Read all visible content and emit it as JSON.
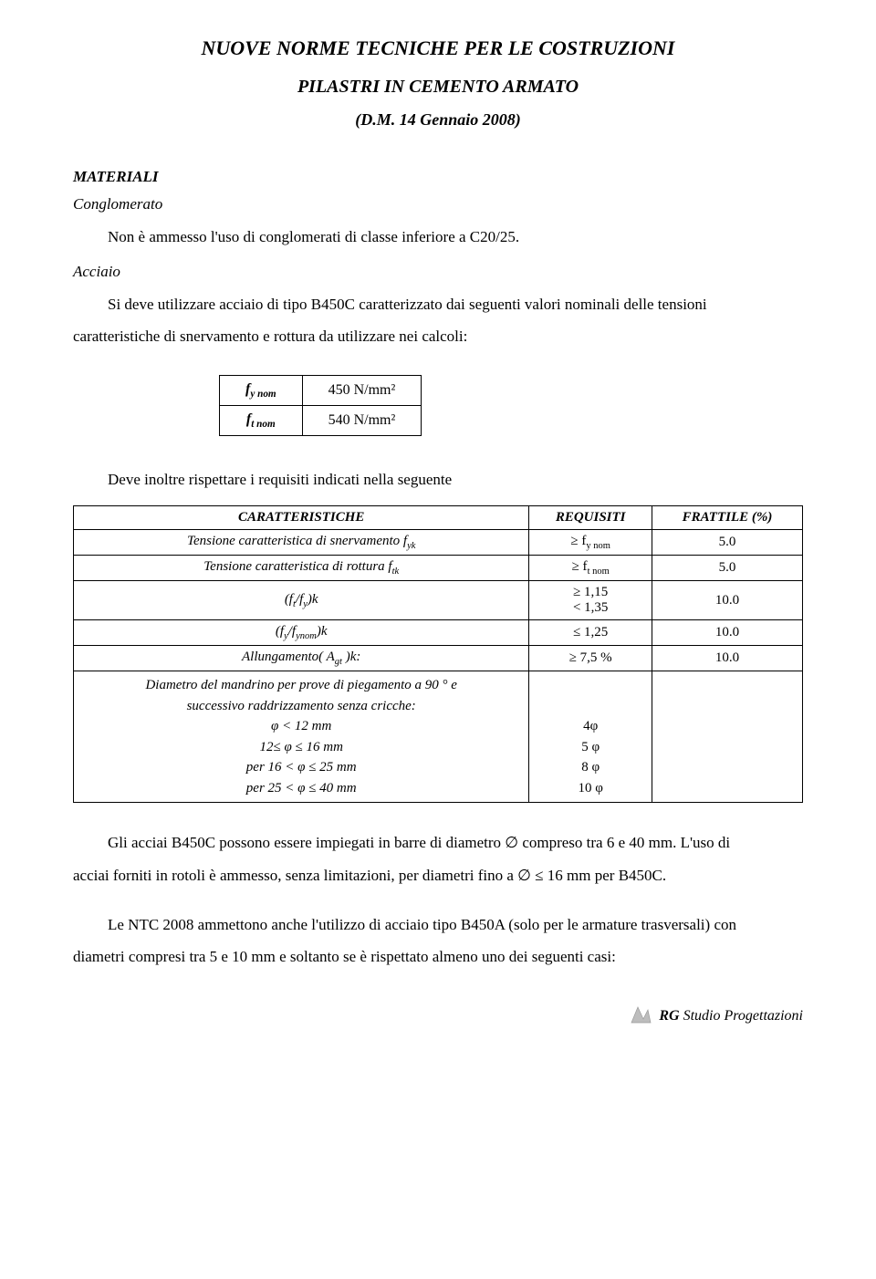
{
  "title": {
    "main": "NUOVE NORME TECNICHE PER LE COSTRUZIONI",
    "sub": "PILASTRI IN CEMENTO ARMATO",
    "date": "(D.M. 14 Gennaio 2008)"
  },
  "sections": {
    "materiali_heading": "MATERIALI",
    "conglomerato": {
      "heading": "Conglomerato",
      "text": "Non è ammesso l'uso di conglomerati di classe inferiore a C20/25."
    },
    "acciaio": {
      "heading": "Acciaio",
      "intro_prefix": "Si deve utilizzare acciaio di tipo B450C caratterizzato dai seguenti valori nominali delle tensioni",
      "intro_suffix": "caratteristiche di snervamento e rottura da utilizzare nei calcoli:"
    },
    "small_table": {
      "rows": [
        {
          "label_html": "f<sub>y nom</sub>",
          "value": "450 N/mm²"
        },
        {
          "label_html": "f<sub>t nom</sub>",
          "value": "540 N/mm²"
        }
      ]
    },
    "requisiti_text": "Deve inoltre rispettare i requisiti indicati nella seguente",
    "main_table": {
      "headers": [
        "CARATTERISTICHE",
        "REQUISITI",
        "FRATTILE (%)"
      ],
      "rows": [
        {
          "char_html": "Tensione caratteristica di snervamento f<sub>yk</sub>",
          "req_html": "&ge; f<sub>y nom</sub>",
          "frat": "5.0"
        },
        {
          "char_html": "Tensione caratteristica di rottura f<sub>tk</sub>",
          "req_html": "&ge; f<sub>t nom</sub>",
          "frat": "5.0"
        },
        {
          "char_html": "(f<sub>t</sub>/f<sub>y</sub>)k",
          "req_html": "&ge; 1,15<br>&lt; 1,35",
          "frat": "10.0"
        },
        {
          "char_html": "(f<sub>y</sub>/f<sub>ynom</sub>)k",
          "req_html": "&le; 1,25",
          "frat": "10.0"
        },
        {
          "char_html": "Allungamento( A<sub>gt</sub> )k:",
          "req_html": "&ge; 7,5 %",
          "frat": "10.0"
        },
        {
          "char_html": "Diametro del mandrino per prove di piegamento a 90 ° e<br>successivo raddrizzamento senza cricche:<br>&phi; &lt; 12 mm<br>12&le; &phi; &le; 16 mm<br>per 16 &lt; &phi; &le; 25 mm<br>per 25 &lt; &phi; &le; 40 mm",
          "req_html": "<br><br><span class=\"plain\">4&phi;</span><br><span class=\"plain\">5 &phi;</span><br><span class=\"plain\">8 &phi;</span><br><span class=\"plain\">10 &phi;</span>",
          "frat": ""
        }
      ]
    },
    "para_b450c_prefix": "Gli acciai B450C possono essere impiegati in barre di diametro ∅ compreso tra 6 e 40 mm. L'uso di",
    "para_b450c_suffix": "acciai forniti in rotoli è ammesso, senza limitazioni, per diametri fino a ∅ ≤ 16 mm per B450C.",
    "para_b450a_prefix": "Le NTC 2008 ammettono anche l'utilizzo di acciaio tipo B450A (solo per le armature trasversali) con",
    "para_b450a_suffix": "diametri compresi tra 5 e 10 mm e soltanto se è rispettato almeno uno dei seguenti casi:"
  },
  "footer": {
    "brand_bold": "RG",
    "brand_rest": " Studio Progettazioni"
  },
  "colors": {
    "background": "#ffffff",
    "text": "#000000",
    "border": "#000000",
    "footer_icon_fill": "#bdbdbd",
    "footer_icon_stroke": "#9a9a9a"
  }
}
